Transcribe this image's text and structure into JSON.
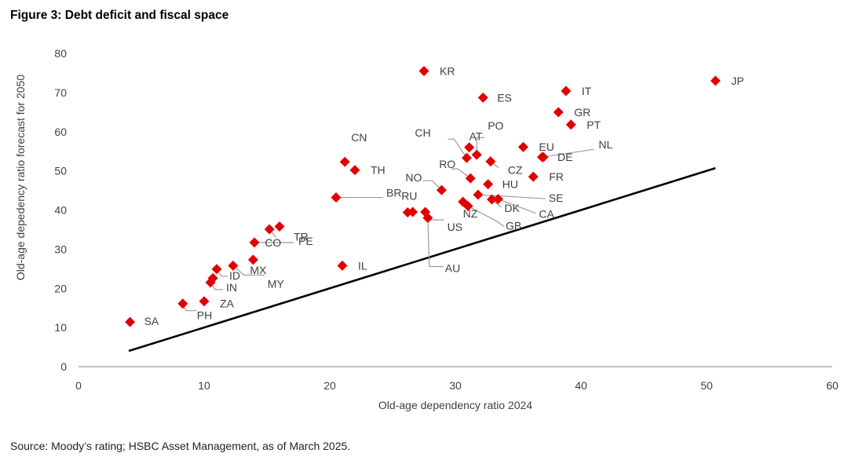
{
  "title": "Figure 3: Debt deficit and fiscal space",
  "source": "Source: Moody’s rating; HSBC Asset Management, as of March 2025.",
  "colors": {
    "marker": "#e00000",
    "line": "#000000",
    "axis": "#7f7f7f",
    "leader": "#9a9a9a",
    "text": "#404040"
  },
  "chart_data": {
    "type": "scatter",
    "xlabel": "Old-age dependency ratio 2024",
    "ylabel": "Old-age depedency ratio forecast for 2050",
    "xlim": [
      0,
      60
    ],
    "ylim": [
      0,
      80
    ],
    "xticks": [
      0,
      10,
      20,
      30,
      40,
      50,
      60
    ],
    "yticks": [
      0,
      10,
      20,
      30,
      40,
      50,
      60,
      70,
      80
    ],
    "grid": false,
    "reference_line": {
      "x": [
        4,
        50.7
      ],
      "y": [
        4,
        50.7
      ]
    },
    "points": [
      {
        "label": "SA",
        "x": 4.1,
        "y": 11.4
      },
      {
        "label": "PH",
        "x": 8.3,
        "y": 16.1
      },
      {
        "label": "ZA",
        "x": 10.0,
        "y": 16.7
      },
      {
        "label": "IN",
        "x": 10.5,
        "y": 21.5
      },
      {
        "label": "",
        "x": 10.7,
        "y": 22.6
      },
      {
        "label": "ID",
        "x": 11.0,
        "y": 24.9
      },
      {
        "label": "MY",
        "x": 12.3,
        "y": 25.8
      },
      {
        "label": "MX",
        "x": 13.9,
        "y": 27.3
      },
      {
        "label": "PE",
        "x": 14.0,
        "y": 31.7
      },
      {
        "label": "CO",
        "x": 15.2,
        "y": 35.1
      },
      {
        "label": "TR",
        "x": 16.0,
        "y": 35.8
      },
      {
        "label": "BR",
        "x": 20.5,
        "y": 43.2
      },
      {
        "label": "CN",
        "x": 21.2,
        "y": 52.3
      },
      {
        "label": "TH",
        "x": 22.0,
        "y": 50.2
      },
      {
        "label": "IL",
        "x": 21.0,
        "y": 25.8
      },
      {
        "label": "RU",
        "x": 26.2,
        "y": 39.4
      },
      {
        "label": "",
        "x": 26.6,
        "y": 39.5
      },
      {
        "label": "US",
        "x": 27.6,
        "y": 39.5
      },
      {
        "label": "AU",
        "x": 27.8,
        "y": 38.0
      },
      {
        "label": "KR",
        "x": 27.5,
        "y": 75.5
      },
      {
        "label": "NO",
        "x": 28.9,
        "y": 45.1
      },
      {
        "label": "NZ",
        "x": 30.6,
        "y": 42.1
      },
      {
        "label": "GB",
        "x": 31.0,
        "y": 41.0
      },
      {
        "label": "CH",
        "x": 30.9,
        "y": 53.3
      },
      {
        "label": "AT",
        "x": 31.1,
        "y": 56.0
      },
      {
        "label": "RO",
        "x": 31.2,
        "y": 48.1
      },
      {
        "label": "PO",
        "x": 31.7,
        "y": 54.1
      },
      {
        "label": "ES",
        "x": 32.2,
        "y": 68.7
      },
      {
        "label": "SE",
        "x": 31.8,
        "y": 43.9
      },
      {
        "label": "HU",
        "x": 32.6,
        "y": 46.6
      },
      {
        "label": "CZ",
        "x": 32.8,
        "y": 52.4
      },
      {
        "label": "DK",
        "x": 32.9,
        "y": 42.7
      },
      {
        "label": "CA",
        "x": 33.4,
        "y": 42.8
      },
      {
        "label": "EU",
        "x": 35.4,
        "y": 56.1
      },
      {
        "label": "FR",
        "x": 36.2,
        "y": 48.5
      },
      {
        "label": "NL",
        "x": 36.9,
        "y": 53.5
      },
      {
        "label": "DE",
        "x": 37.0,
        "y": 53.5
      },
      {
        "label": "GR",
        "x": 38.2,
        "y": 65.0
      },
      {
        "label": "IT",
        "x": 38.8,
        "y": 70.4
      },
      {
        "label": "PT",
        "x": 39.2,
        "y": 61.8
      },
      {
        "label": "JP",
        "x": 50.7,
        "y": 73.0
      }
    ]
  }
}
